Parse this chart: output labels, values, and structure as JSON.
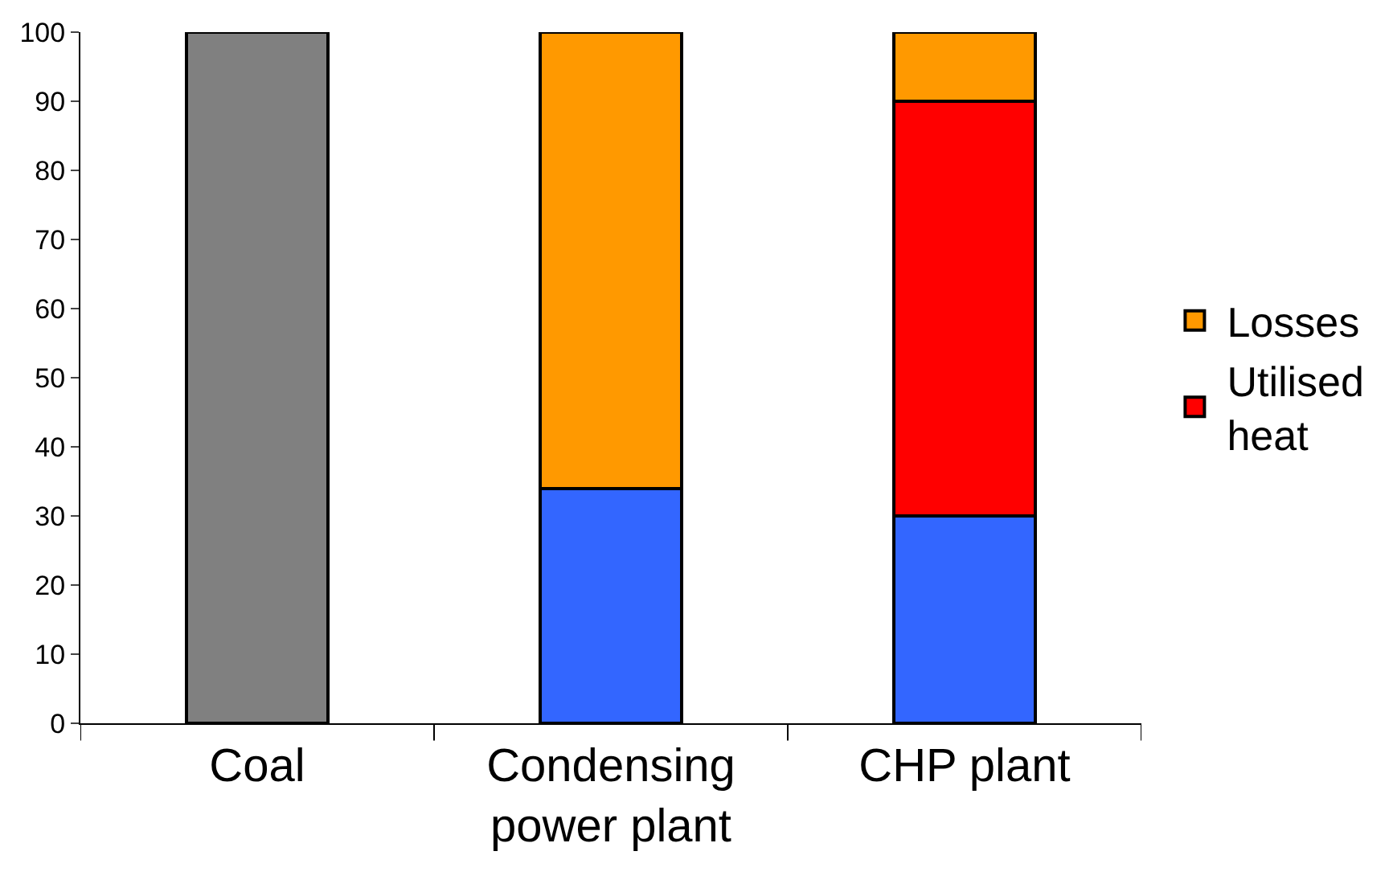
{
  "chart_data": {
    "type": "bar",
    "stacked": true,
    "categories": [
      "Coal",
      "Condensing power plant",
      "CHP plant"
    ],
    "series": [
      {
        "color": "#808080",
        "values": [
          100,
          null,
          null
        ]
      },
      {
        "color": "#3366ff",
        "values": [
          null,
          34,
          30
        ]
      },
      {
        "name": "Utilised heat",
        "color": "#ff0000",
        "values": [
          null,
          null,
          60
        ]
      },
      {
        "name": "Losses",
        "color": "#ff9900",
        "values": [
          null,
          66,
          10
        ]
      }
    ],
    "ylim": [
      0,
      100
    ],
    "yticks": [
      0,
      10,
      20,
      30,
      40,
      50,
      60,
      70,
      80,
      90,
      100
    ],
    "legend": "right"
  }
}
